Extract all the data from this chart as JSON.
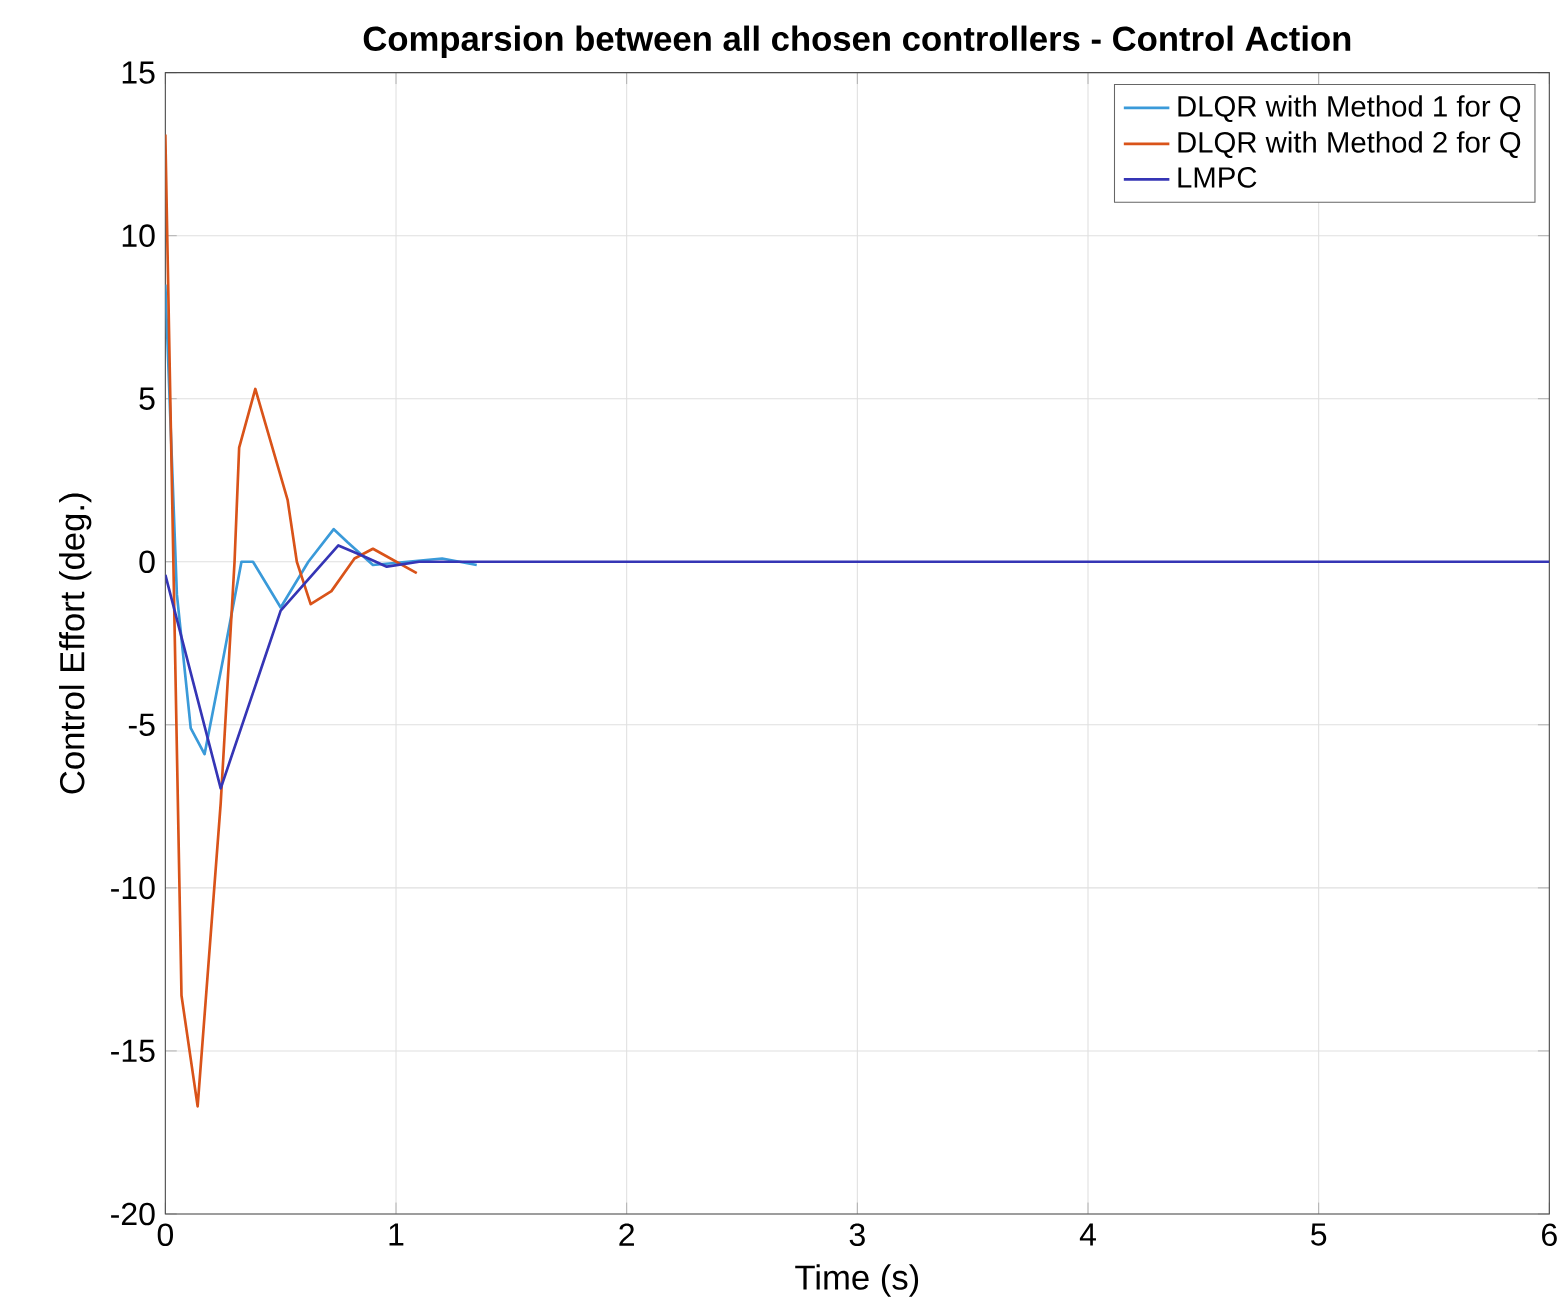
{
  "chart_data": {
    "type": "line",
    "title": "Comparsion between all chosen controllers - Control Action",
    "xlabel": "Time (s)",
    "ylabel": "Control Effort (deg.)",
    "xlim": [
      0,
      6
    ],
    "ylim": [
      -20,
      15
    ],
    "xticks": [
      0,
      1,
      2,
      3,
      4,
      5,
      6
    ],
    "yticks": [
      -20,
      -15,
      -10,
      -5,
      0,
      5,
      10,
      15
    ],
    "grid": true,
    "legend": "top right",
    "line_style": "solid",
    "marker": "none",
    "series": [
      {
        "name": "DLQR with Method 1 for Q",
        "color": "#3a9ad9",
        "x": [
          0,
          0.05,
          0.11,
          0.17,
          0.25,
          0.33,
          0.38,
          0.5,
          0.62,
          0.73,
          0.79,
          0.9,
          1.05,
          1.2,
          1.35
        ],
        "values": [
          8.5,
          -1,
          -5.1,
          -5.9,
          -3,
          0,
          0,
          -1.4,
          0,
          1,
          0.6,
          -0.1,
          0,
          0.1,
          -0.1
        ]
      },
      {
        "name": "DLQR with Method 2 for Q",
        "color": "#d95319",
        "x": [
          0,
          0.07,
          0.14,
          0.24,
          0.3,
          0.32,
          0.39,
          0.53,
          0.57,
          0.63,
          0.72,
          0.82,
          0.9,
          1.09
        ],
        "values": [
          13.1,
          -13.3,
          -16.7,
          -7.4,
          0,
          3.5,
          5.3,
          1.9,
          0,
          -1.3,
          -0.9,
          0.1,
          0.4,
          -0.35
        ]
      },
      {
        "name": "LMPC",
        "color": "#3535b5",
        "x": [
          0,
          0.24,
          0.5,
          0.75,
          0.85,
          0.96,
          1.1,
          1.5,
          2,
          3,
          4,
          5,
          6
        ],
        "values": [
          -0.4,
          -6.95,
          -1.5,
          0.5,
          0.2,
          -0.15,
          0,
          0,
          0,
          0,
          0,
          0,
          0
        ]
      }
    ]
  }
}
